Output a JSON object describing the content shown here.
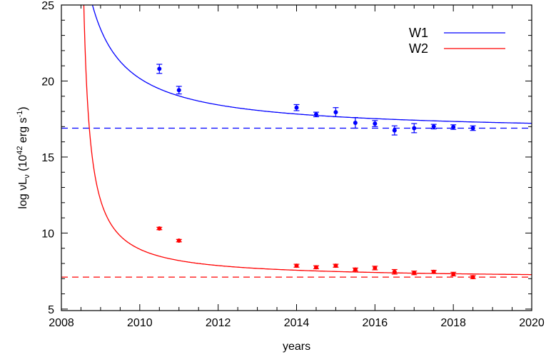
{
  "chart_data": {
    "type": "scatter",
    "xlabel": "years",
    "ylabel": {
      "prefix": "log νL",
      "sub": "ν",
      "paren": " (10",
      "exp": "42",
      "unit": " erg s",
      "exp2": "-1",
      "close": ")"
    },
    "xlim": [
      2008,
      2020
    ],
    "ylim": [
      4.9,
      25
    ],
    "x_ticks": [
      2008,
      2010,
      2012,
      2014,
      2016,
      2018,
      2020
    ],
    "y_ticks": [
      5,
      10,
      15,
      20,
      25
    ],
    "grid": false,
    "legend_position": "top-right",
    "series": [
      {
        "name": "W1",
        "color": "#0000ff",
        "baseline": 16.9,
        "points": [
          {
            "x": 2010.5,
            "y": 20.8,
            "err": 0.3
          },
          {
            "x": 2011.0,
            "y": 19.4,
            "err": 0.25
          },
          {
            "x": 2014.0,
            "y": 18.25,
            "err": 0.2
          },
          {
            "x": 2014.5,
            "y": 17.8,
            "err": 0.15
          },
          {
            "x": 2015.0,
            "y": 17.95,
            "err": 0.3
          },
          {
            "x": 2015.5,
            "y": 17.25,
            "err": 0.35
          },
          {
            "x": 2016.0,
            "y": 17.2,
            "err": 0.2
          },
          {
            "x": 2016.5,
            "y": 16.75,
            "err": 0.3
          },
          {
            "x": 2017.0,
            "y": 16.9,
            "err": 0.3
          },
          {
            "x": 2017.5,
            "y": 17.0,
            "err": 0.15
          },
          {
            "x": 2018.0,
            "y": 16.97,
            "err": 0.15
          },
          {
            "x": 2018.5,
            "y": 16.9,
            "err": 0.15
          }
        ],
        "fit": {
          "t0": 2007.9,
          "asymptote": 16.6,
          "amplitude": 7.5
        }
      },
      {
        "name": "W2",
        "color": "#ff0000",
        "baseline": 7.1,
        "points": [
          {
            "x": 2010.5,
            "y": 10.3,
            "err": 0.08
          },
          {
            "x": 2011.0,
            "y": 9.5,
            "err": 0.08
          },
          {
            "x": 2014.0,
            "y": 7.85,
            "err": 0.1
          },
          {
            "x": 2014.5,
            "y": 7.75,
            "err": 0.1
          },
          {
            "x": 2015.0,
            "y": 7.85,
            "err": 0.1
          },
          {
            "x": 2015.5,
            "y": 7.6,
            "err": 0.1
          },
          {
            "x": 2016.0,
            "y": 7.7,
            "err": 0.12
          },
          {
            "x": 2016.5,
            "y": 7.45,
            "err": 0.15
          },
          {
            "x": 2017.0,
            "y": 7.38,
            "err": 0.12
          },
          {
            "x": 2017.5,
            "y": 7.45,
            "err": 0.1
          },
          {
            "x": 2018.0,
            "y": 7.3,
            "err": 0.12
          },
          {
            "x": 2018.5,
            "y": 7.1,
            "err": 0.1
          }
        ],
        "fit": {
          "t0": 2008.4,
          "asymptote": 7.0,
          "amplitude": 3.1
        }
      }
    ]
  }
}
